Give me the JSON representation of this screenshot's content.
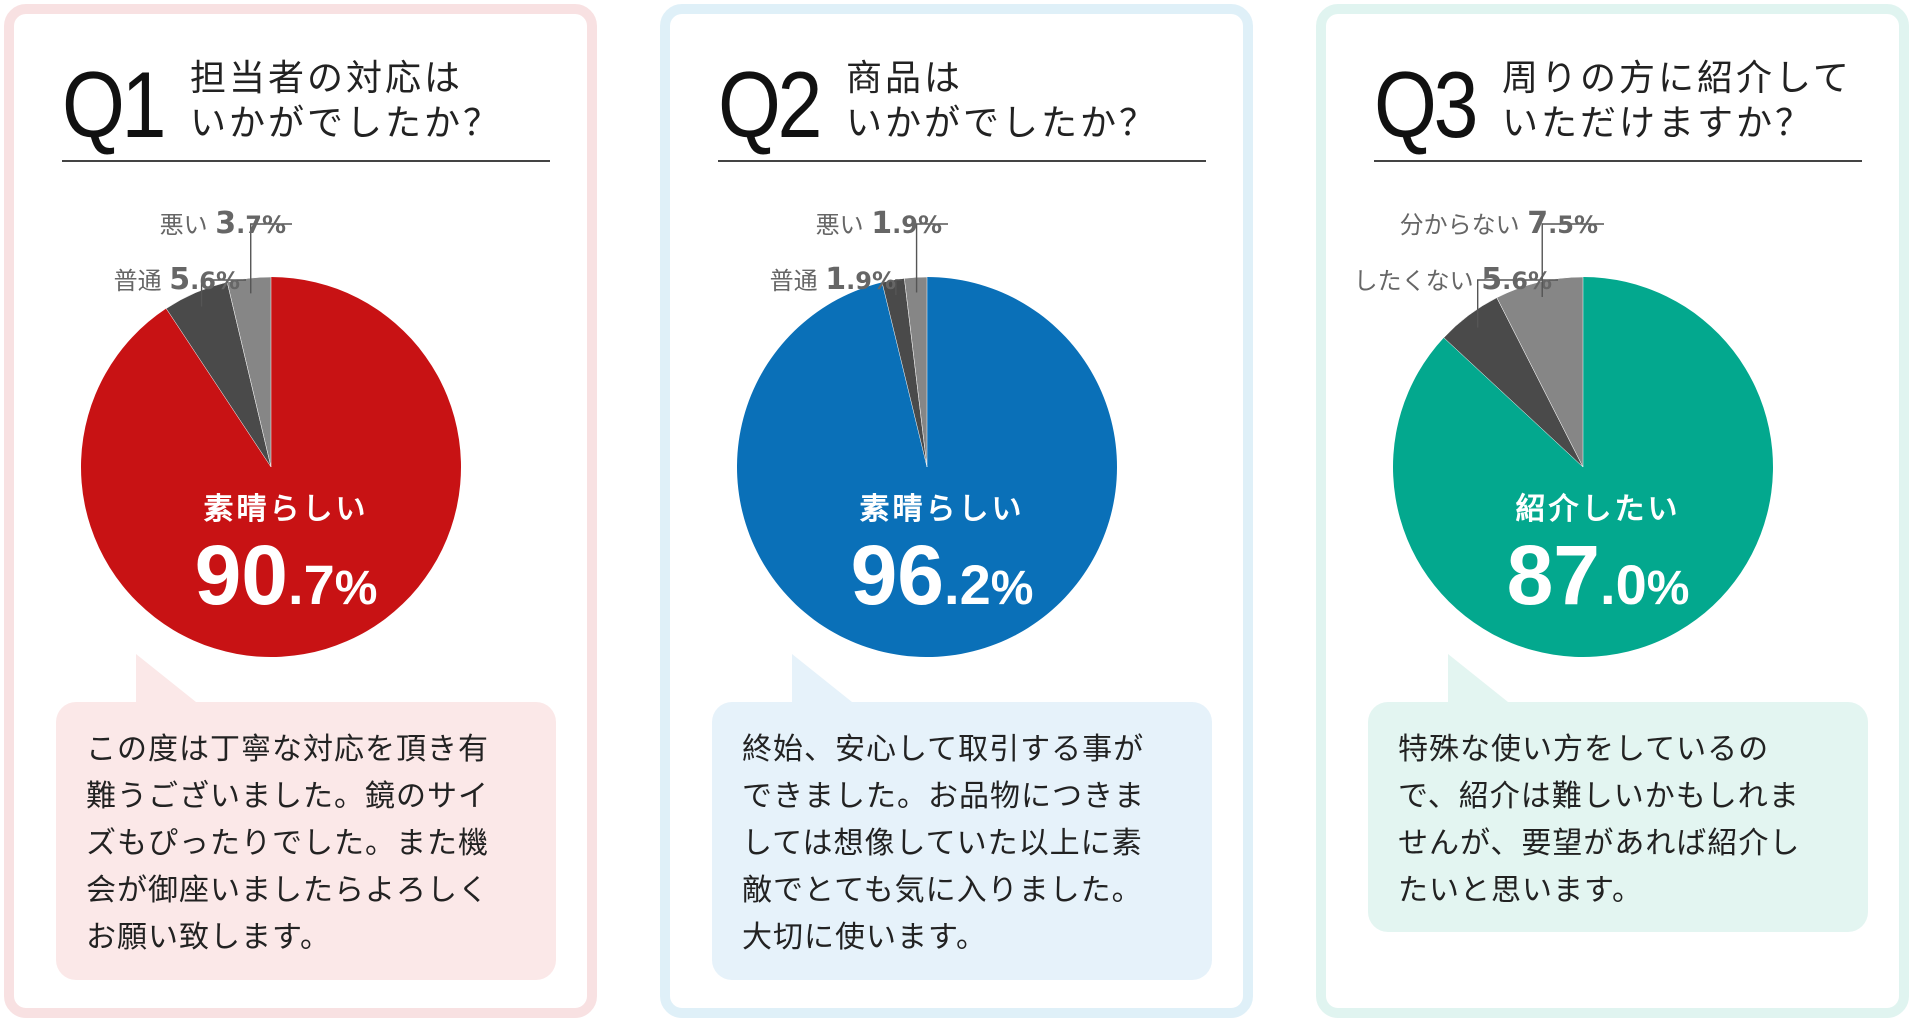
{
  "chart_data": [
    {
      "type": "pie",
      "question_number": "Q1",
      "question_title": [
        "担当者の対応は",
        "いかがでしたか？"
      ],
      "slices": [
        {
          "label": "素晴らしい",
          "value": 90.7,
          "color": "#c81214"
        },
        {
          "label": "普通",
          "value": 5.6,
          "color": "#4a4a4a"
        },
        {
          "label": "悪い",
          "value": 3.7,
          "color": "#868686"
        }
      ],
      "comment": [
        "この度は丁寧な対応を頂き有",
        "難うございました。鏡のサイ",
        "ズもぴったりでした。また機",
        "会が御座いましたらよろしく",
        "お願い致します。"
      ],
      "colors": {
        "border": "#f8e1e2",
        "callout_bg": "#fbe8e8"
      }
    },
    {
      "type": "pie",
      "question_number": "Q2",
      "question_title": [
        "商品は",
        "いかがでしたか？"
      ],
      "slices": [
        {
          "label": "素晴らしい",
          "value": 96.2,
          "color": "#0a70b8"
        },
        {
          "label": "普通",
          "value": 1.9,
          "color": "#4a4a4a"
        },
        {
          "label": "悪い",
          "value": 1.9,
          "color": "#868686"
        }
      ],
      "comment": [
        "終始、安心して取引する事が",
        "できました。お品物につきま",
        "しては想像していた以上に素",
        "敵でとても気に入りました。",
        "大切に使います。"
      ],
      "colors": {
        "border": "#dff0f8",
        "callout_bg": "#e6f2fa"
      }
    },
    {
      "type": "pie",
      "question_number": "Q3",
      "question_title": [
        "周りの方に紹介して",
        "いただけますか？"
      ],
      "slices": [
        {
          "label": "紹介したい",
          "value": 87.0,
          "color": "#03a88e"
        },
        {
          "label": "したくない",
          "value": 5.6,
          "color": "#4a4a4a"
        },
        {
          "label": "分からない",
          "value": 7.5,
          "color": "#868686"
        }
      ],
      "comment": [
        "特殊な使い方をしているの",
        "で、紹介は難しいかもしれま",
        "せんが、要望があれば紹介し",
        "たいと思います。"
      ],
      "colors": {
        "border": "#e0f4f0",
        "callout_bg": "#e3f5f1"
      }
    }
  ]
}
